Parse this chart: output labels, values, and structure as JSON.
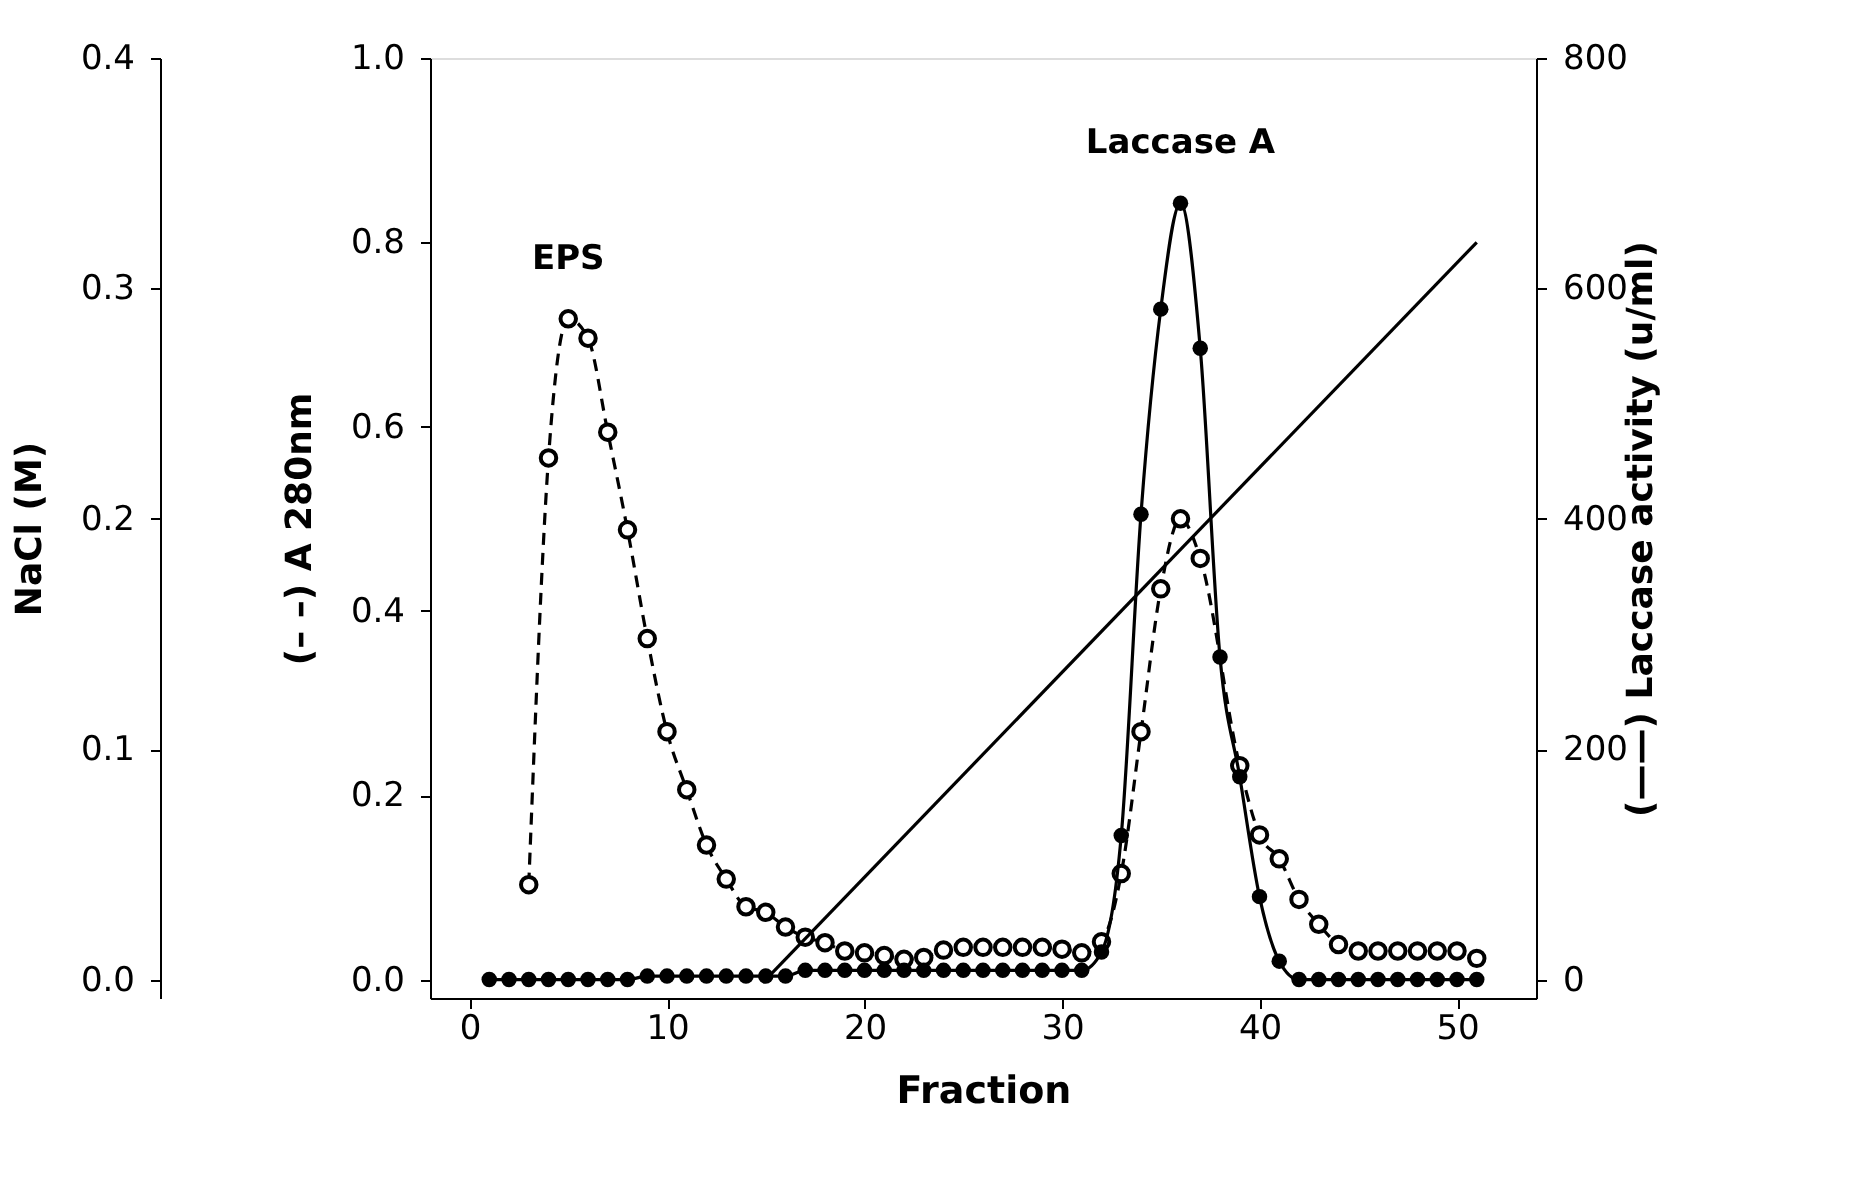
{
  "chart_data": {
    "type": "line",
    "xlabel": "Fraction",
    "ylabel": "(– –) A 280nm",
    "y2label": "(——) Laccase activity (u/ml)",
    "y3label": "NaCl (M)",
    "x": [
      1,
      2,
      3,
      4,
      5,
      6,
      7,
      8,
      9,
      10,
      11,
      12,
      13,
      14,
      15,
      16,
      17,
      18,
      19,
      20,
      21,
      22,
      23,
      24,
      25,
      26,
      27,
      28,
      29,
      30,
      31,
      32,
      33,
      34,
      35,
      36,
      37,
      38,
      39,
      40,
      41,
      42,
      43,
      44,
      45,
      46,
      47,
      48,
      49,
      50,
      51
    ],
    "xlim": [
      -2,
      54
    ],
    "xticks": [
      0,
      10,
      20,
      30,
      40,
      50
    ],
    "ylim": [
      -0.02,
      1.0
    ],
    "yticks": [
      {
        "value": 0,
        "label": "0.0"
      },
      0.2,
      0.4,
      0.6,
      0.8,
      {
        "value": 1,
        "label": "1.0"
      }
    ],
    "y2lim": [
      -16,
      800
    ],
    "y2ticks": [
      0,
      200,
      400,
      600,
      800
    ],
    "y3lim": [
      -0.008,
      0.4
    ],
    "y3ticks": [
      {
        "value": 0,
        "label": "0.0"
      },
      0.1,
      0.2,
      0.3,
      0.4
    ],
    "grid": false,
    "series": [
      {
        "color": "#000000",
        "axis": "y",
        "marker": "circle",
        "line_style": "dashed",
        "values": [
          null,
          null,
          0.103,
          0.566,
          0.717,
          0.696,
          0.594,
          0.488,
          0.37,
          0.269,
          0.206,
          0.146,
          0.109,
          0.079,
          0.073,
          0.057,
          0.046,
          0.04,
          0.031,
          0.029,
          0.026,
          0.022,
          0.024,
          0.032,
          0.035,
          0.035,
          0.035,
          0.035,
          0.035,
          0.033,
          0.029,
          0.041,
          0.115,
          0.269,
          0.424,
          0.5,
          0.457,
          null,
          0.232,
          0.157,
          0.131,
          0.087,
          0.06,
          0.038,
          0.031,
          0.031,
          0.031,
          0.031,
          0.031,
          0.031,
          0.023
        ]
      },
      {
        "color": "#000000",
        "axis": "y2",
        "marker": "circle",
        "line_style": "solid",
        "values": [
          0,
          0,
          0,
          0,
          0,
          0,
          0,
          0,
          3,
          3,
          3,
          3,
          3,
          3,
          3,
          3,
          8,
          8,
          8,
          8,
          8,
          8,
          8,
          8,
          8,
          8,
          8,
          8,
          8,
          8,
          8,
          24,
          125,
          404,
          582,
          674,
          548,
          280,
          176,
          72,
          16,
          0,
          0,
          0,
          0,
          0,
          0,
          0,
          0,
          0,
          0
        ]
      },
      {
        "color": "#000000",
        "axis": "y3",
        "marker": "none",
        "line_style": "solid",
        "x": [
          15,
          51
        ],
        "values": [
          0.0,
          0.32
        ]
      }
    ],
    "annotations": [
      "EPS",
      "Laccase A"
    ]
  }
}
